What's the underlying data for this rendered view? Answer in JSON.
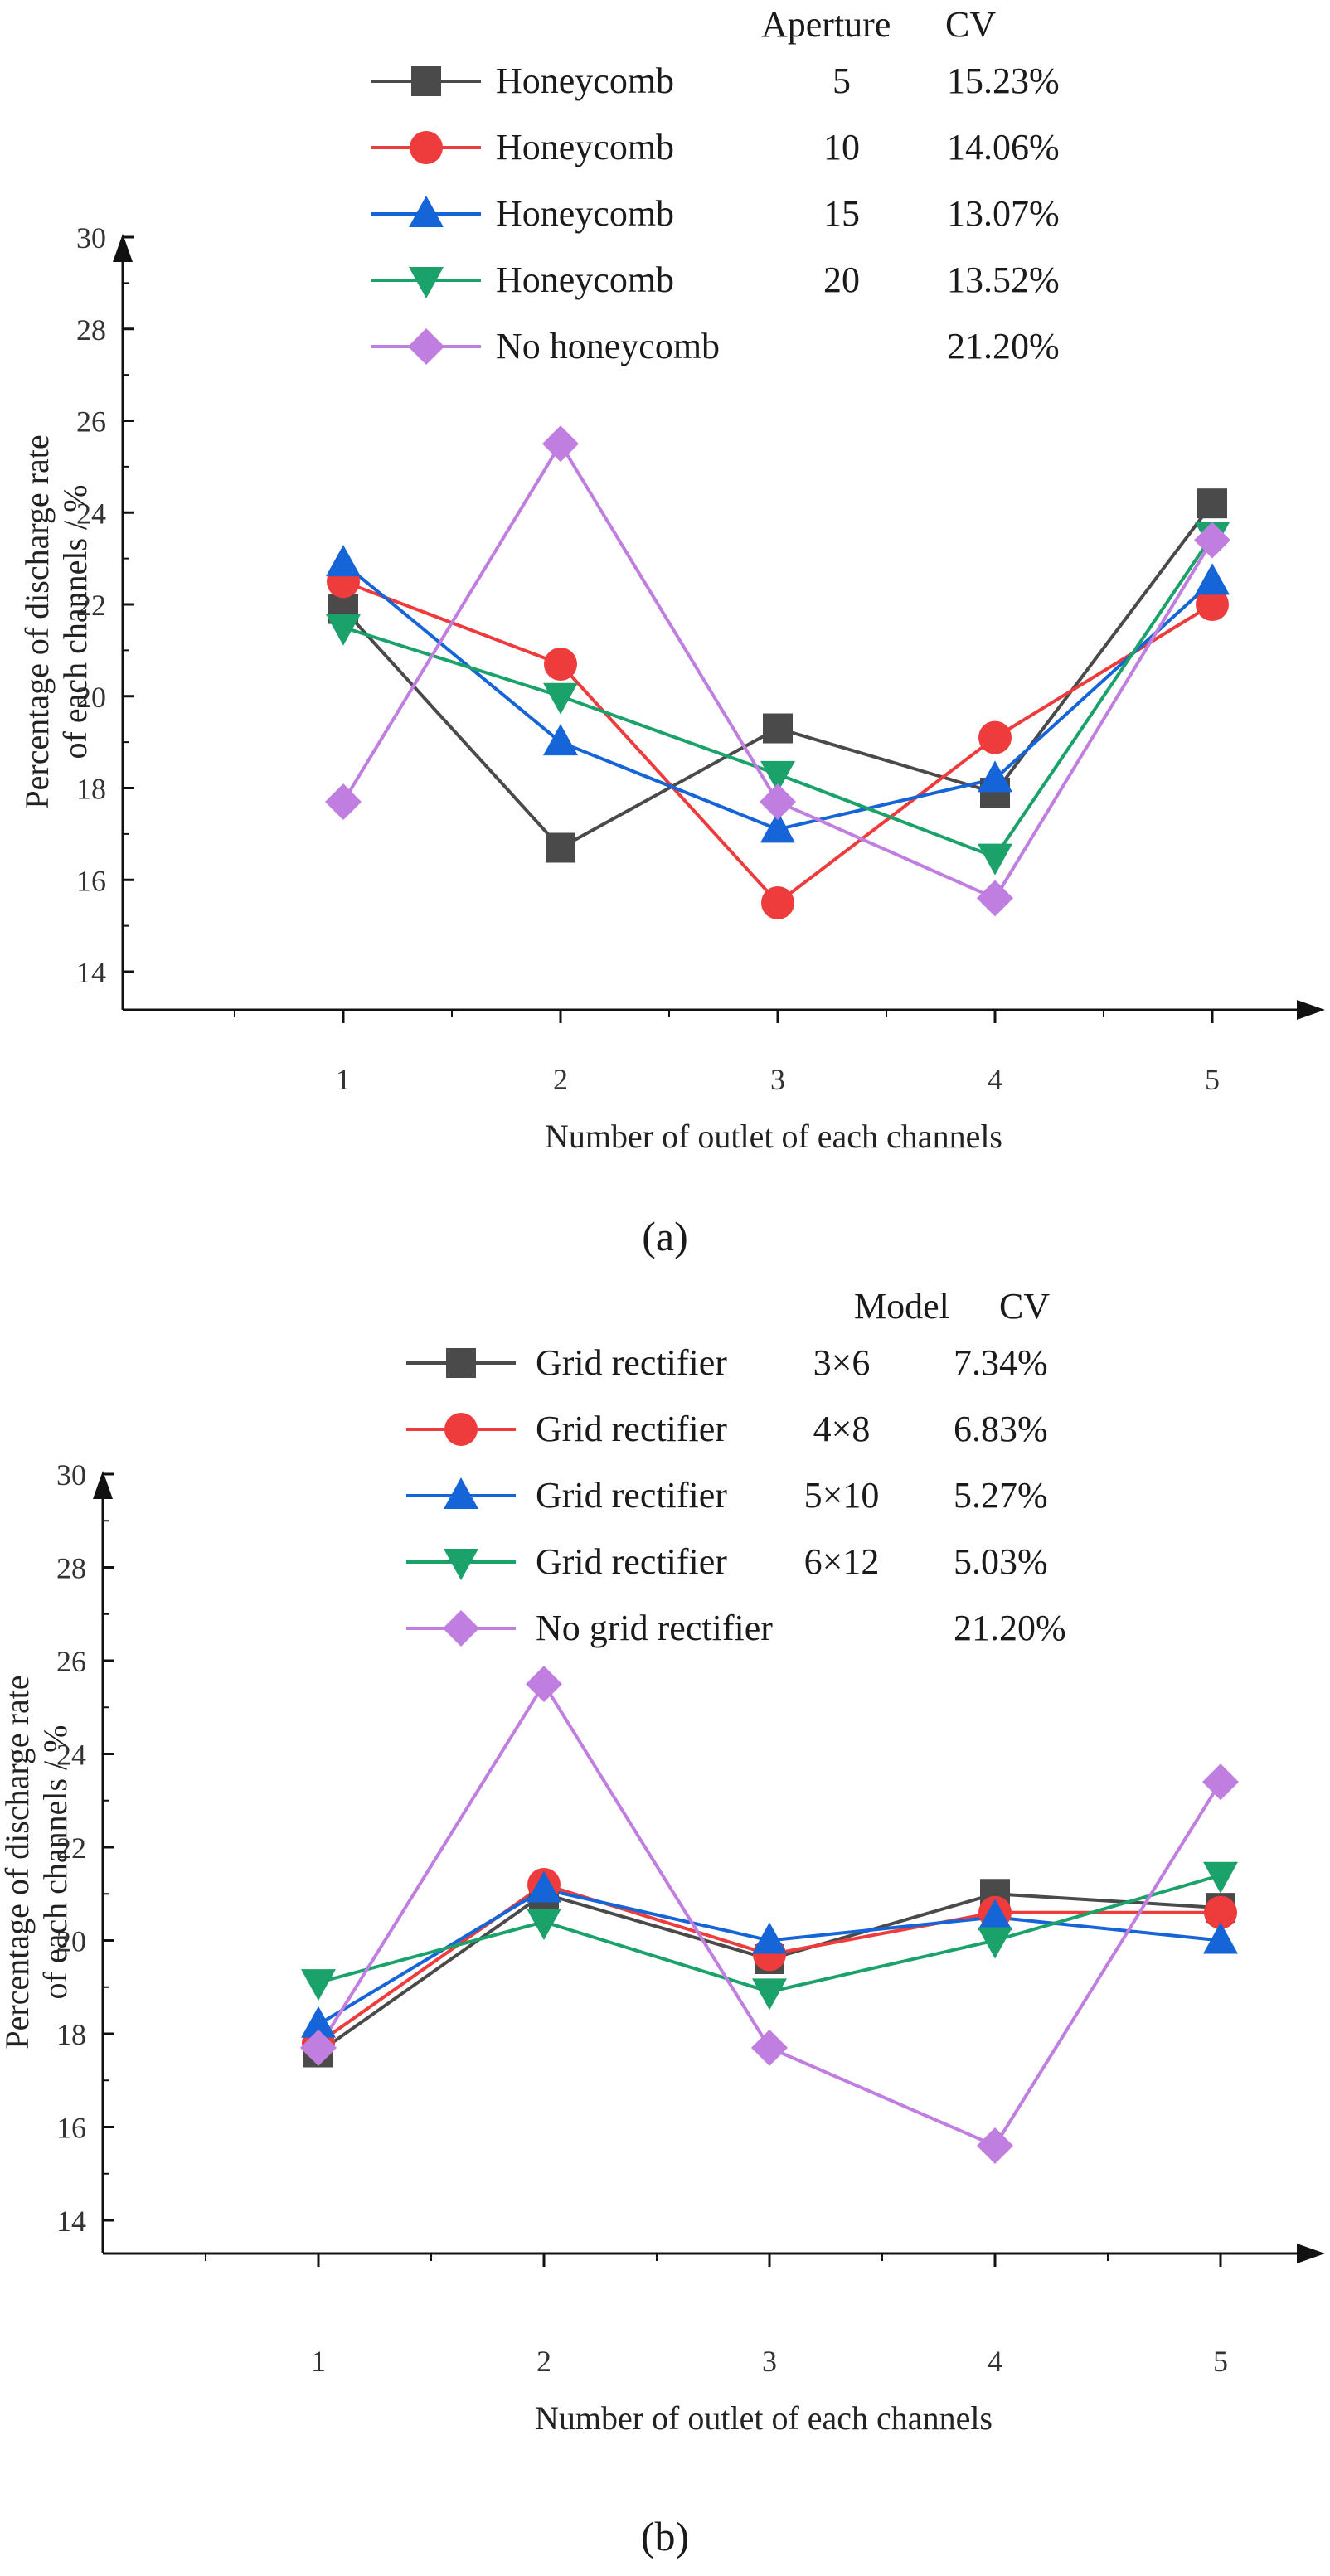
{
  "chart_data": [
    {
      "type": "line",
      "panel_label": "(a)",
      "legend": {
        "placement": "top",
        "header": [
          "Aperture",
          "CV"
        ],
        "columns": [
          "name",
          "param",
          "cv"
        ]
      },
      "xlabel": "Number of outlet of each channels",
      "ylabel": [
        "Percentage of discharge rate",
        "of each channels / %"
      ],
      "x": [
        1,
        2,
        3,
        4,
        5
      ],
      "x_ticks": [
        "1",
        "2",
        "3",
        "4",
        "5"
      ],
      "ylim": [
        14,
        30
      ],
      "y_ticks": [
        14,
        16,
        18,
        20,
        22,
        24,
        26,
        28,
        30
      ],
      "grid": false,
      "series": [
        {
          "name": "Honeycomb",
          "param": "5",
          "cv": "15.23%",
          "color": "#4a4a4a",
          "marker": "square",
          "values": [
            21.9,
            16.7,
            19.3,
            17.9,
            24.2
          ]
        },
        {
          "name": "Honeycomb",
          "param": "10",
          "cv": "14.06%",
          "color": "#ee3b3b",
          "marker": "circle",
          "values": [
            22.5,
            20.7,
            15.5,
            19.1,
            22.0
          ]
        },
        {
          "name": "Honeycomb",
          "param": "15",
          "cv": "13.07%",
          "color": "#1565d8",
          "marker": "triangle-up",
          "values": [
            22.9,
            19.0,
            17.1,
            18.2,
            22.5
          ]
        },
        {
          "name": "Honeycomb",
          "param": "20",
          "cv": "13.52%",
          "color": "#1aa26a",
          "marker": "triangle-down",
          "values": [
            21.5,
            20.0,
            18.3,
            16.5,
            23.5
          ]
        },
        {
          "name": "No honeycomb",
          "param": "",
          "cv": "21.20%",
          "color": "#c07ee0",
          "marker": "diamond",
          "values": [
            17.7,
            25.5,
            17.7,
            15.6,
            23.4
          ]
        }
      ]
    },
    {
      "type": "line",
      "panel_label": "(b)",
      "legend": {
        "placement": "top",
        "header": [
          "Model",
          "CV"
        ],
        "columns": [
          "name",
          "param",
          "cv"
        ]
      },
      "xlabel": "Number of outlet of each channels",
      "ylabel": [
        "Percentage of discharge rate",
        "of each channels / %"
      ],
      "x": [
        1,
        2,
        3,
        4,
        5
      ],
      "x_ticks": [
        "1",
        "2",
        "3",
        "4",
        "5"
      ],
      "ylim": [
        14,
        30
      ],
      "y_ticks": [
        14,
        16,
        18,
        20,
        22,
        24,
        26,
        28,
        30
      ],
      "grid": false,
      "series": [
        {
          "name": "Grid rectifier",
          "param": "3×6",
          "cv": "7.34%",
          "color": "#4a4a4a",
          "marker": "square",
          "values": [
            17.6,
            21.0,
            19.6,
            21.0,
            20.7
          ]
        },
        {
          "name": "Grid rectifier",
          "param": "4×8",
          "cv": "6.83%",
          "color": "#ee3b3b",
          "marker": "circle",
          "values": [
            17.8,
            21.2,
            19.7,
            20.6,
            20.6
          ]
        },
        {
          "name": "Grid rectifier",
          "param": "5×10",
          "cv": "5.27%",
          "color": "#1565d8",
          "marker": "triangle-up",
          "values": [
            18.2,
            21.1,
            20.0,
            20.5,
            20.0
          ]
        },
        {
          "name": "Grid rectifier",
          "param": "6×12",
          "cv": "5.03%",
          "color": "#1aa26a",
          "marker": "triangle-down",
          "values": [
            19.1,
            20.4,
            18.9,
            20.0,
            21.4
          ]
        },
        {
          "name": "No grid rectifier",
          "param": "",
          "cv": "21.20%",
          "color": "#c07ee0",
          "marker": "diamond",
          "values": [
            17.7,
            25.5,
            17.7,
            15.6,
            23.4
          ]
        }
      ]
    }
  ]
}
